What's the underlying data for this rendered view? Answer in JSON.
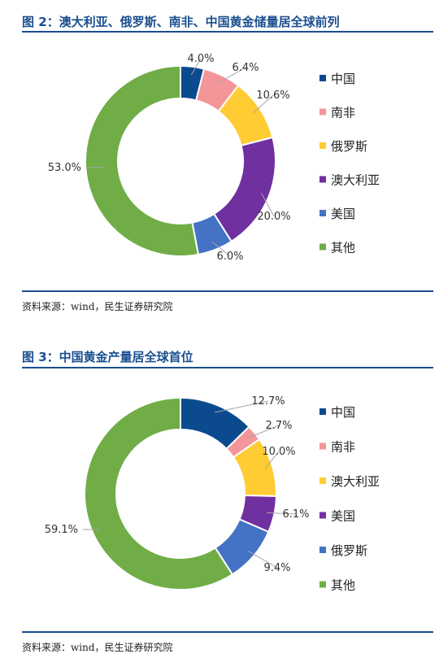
{
  "chart_data": [
    {
      "type": "pie",
      "title": "图 2：澳大利亚、俄罗斯、南非、中国黄金储量居全球前列",
      "source": "资料来源：wind，民生证券研究院",
      "legend_position": "right",
      "series": [
        {
          "name": "中国",
          "value": 4.0,
          "label": "4.0%",
          "color": "#0b4a8f"
        },
        {
          "name": "南非",
          "value": 6.4,
          "label": "6.4%",
          "color": "#f4959a"
        },
        {
          "name": "俄罗斯",
          "value": 10.6,
          "label": "10.6%",
          "color": "#ffcc33"
        },
        {
          "name": "澳大利亚",
          "value": 20.0,
          "label": "20.0%",
          "color": "#7030a0"
        },
        {
          "name": "美国",
          "value": 6.0,
          "label": "6.0%",
          "color": "#4472c4"
        },
        {
          "name": "其他",
          "value": 53.0,
          "label": "53.0%",
          "color": "#70ad47"
        }
      ]
    },
    {
      "type": "pie",
      "title": "图 3：中国黄金产量居全球首位",
      "source": "资料来源：wind，民生证券研究院",
      "legend_position": "right",
      "series": [
        {
          "name": "中国",
          "value": 12.7,
          "label": "12.7%",
          "color": "#0b4a8f"
        },
        {
          "name": "南非",
          "value": 2.7,
          "label": "2.7%",
          "color": "#f4959a"
        },
        {
          "name": "澳大利亚",
          "value": 10.0,
          "label": "10.0%",
          "color": "#ffcc33"
        },
        {
          "name": "美国",
          "value": 6.1,
          "label": "6.1%",
          "color": "#7030a0"
        },
        {
          "name": "俄罗斯",
          "value": 9.4,
          "label": "9.4%",
          "color": "#4472c4"
        },
        {
          "name": "其他",
          "value": 59.1,
          "label": "59.1%",
          "color": "#70ad47"
        }
      ]
    }
  ]
}
